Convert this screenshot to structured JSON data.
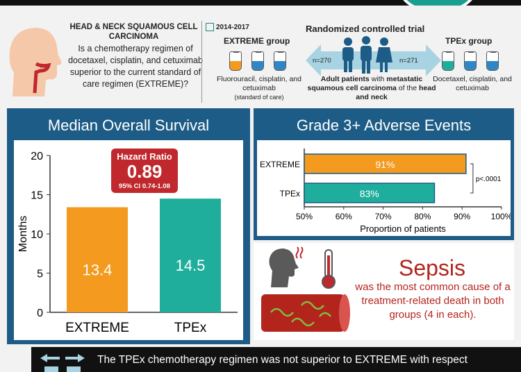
{
  "header": {
    "question_title": "HEAD & NECK SQUAMOUS CELL CARCINOMA",
    "question_text": "Is a chemotherapy regimen of docetaxel, cisplatin, and cetuximab superior to the current standard of care regimen (EXTREME)?",
    "years": "2014-2017",
    "trial_type": "Randomized controlled trial",
    "extreme_group_title": "EXTREME group",
    "tpex_group_title": "TPEx group",
    "extreme_n": "n=270",
    "tpex_n": "n=271",
    "population_pre": "Adult patients",
    "population_mid": " with ",
    "population_bold": "metastatic squamous cell carcinoma",
    "population_mid2": " of the ",
    "population_end": "head and neck",
    "extreme_regimen": "Fluorouracil, cisplatin, and cetuximab",
    "extreme_note": "(standard of care)",
    "tpex_regimen": "Docetaxel, cisplatin, and cetuximab"
  },
  "colors": {
    "extreme": "#f39a1f",
    "tpex": "#1fad9c",
    "panel": "#1d5c86",
    "sepsis_red": "#b3241c",
    "hazard_red": "#c0282d"
  },
  "chart_data": [
    {
      "type": "bar",
      "title": "Median Overall Survival",
      "ylabel": "Months",
      "categories": [
        "EXTREME",
        "TPEx"
      ],
      "values": [
        13.4,
        14.5
      ],
      "ylim": [
        0,
        20
      ],
      "yticks": [
        0,
        5,
        10,
        15,
        20
      ],
      "annotation": {
        "label": "Hazard Ratio",
        "value": "0.89",
        "ci": "95% CI 0.74-1.08"
      }
    },
    {
      "type": "bar",
      "orientation": "horizontal",
      "title": "Grade 3+ Adverse Events",
      "xlabel": "Proportion of patients",
      "categories": [
        "EXTREME",
        "TPEx"
      ],
      "values": [
        91,
        83
      ],
      "value_labels": [
        "91%",
        "83%"
      ],
      "xlim": [
        50,
        100
      ],
      "xticks": [
        "50%",
        "60%",
        "70%",
        "80%",
        "90%",
        "100%"
      ],
      "p_value": "p<.0001"
    }
  ],
  "sepsis": {
    "title": "Sepsis",
    "text": "was the most common cause of a treatment-related death in both groups (4 in each)."
  },
  "footer": {
    "text": "The TPEx chemotherapy regimen was not superior to EXTREME with respect"
  }
}
